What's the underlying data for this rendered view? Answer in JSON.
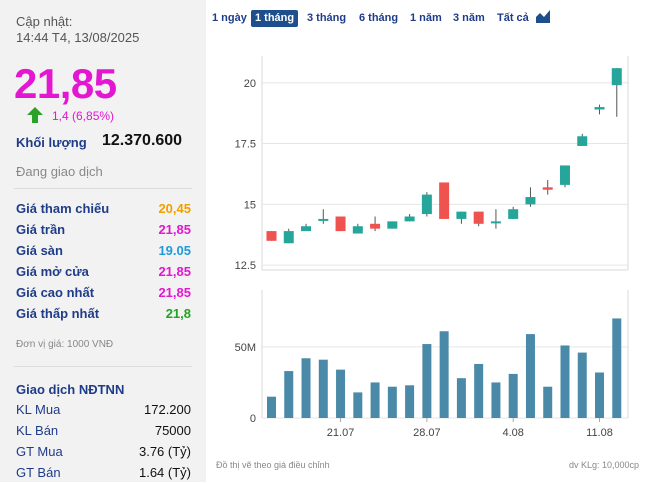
{
  "summary": {
    "update_label": "Cập nhật:",
    "update_time": "14:44 T4, 13/08/2025",
    "price": "21,85",
    "change": "1,4 (6,85%)",
    "volume_label": "Khối lượng",
    "volume_value": "12.370.600",
    "status": "Đang giao dịch",
    "unit_note": "Đơn vị giá: 1000 VNĐ"
  },
  "price_rows": [
    {
      "label": "Giá tham chiếu",
      "value": "20,45",
      "color": "#f0a000"
    },
    {
      "label": "Giá trần",
      "value": "21,85",
      "color": "#e316d2"
    },
    {
      "label": "Giá sàn",
      "value": "19.05",
      "color": "#1f9bd8"
    },
    {
      "label": "Giá mở cửa",
      "value": "21,85",
      "color": "#e316d2"
    },
    {
      "label": "Giá cao nhất",
      "value": "21,85",
      "color": "#e316d2"
    },
    {
      "label": "Giá thấp nhất",
      "value": "21,8",
      "color": "#22a422"
    }
  ],
  "foreign": {
    "title": "Giao dịch NĐTNN",
    "rows": [
      {
        "label": "KL Mua",
        "value": "172.200"
      },
      {
        "label": "KL Bán",
        "value": "75000"
      },
      {
        "label": "GT Mua",
        "value": "3.76 (Tỷ)"
      },
      {
        "label": "GT Bán",
        "value": "1.64 (Tỷ)"
      }
    ]
  },
  "ranges": {
    "items": [
      "1 ngày",
      "1 tháng",
      "3 tháng",
      "6 tháng",
      "1 năm",
      "3 năm",
      "Tất cả"
    ],
    "active": "1 tháng",
    "chart_type_icon": "area-chart-icon"
  },
  "footer": {
    "note": "Đồ thị vẽ theo giá điều chỉnh",
    "volume_unit": "dv KLg: 10,000cp"
  },
  "colors": {
    "up": "#26a69a",
    "down": "#ef5350",
    "volume": "#4a8aa8",
    "accent": "#e316d2"
  },
  "chart_data": {
    "type": "candlestick",
    "x_ticks": [
      "21.07",
      "28.07",
      "4.08",
      "11.08"
    ],
    "y_ticks": [
      "12.5",
      "15",
      "17.5",
      "20"
    ],
    "ylim": [
      12.3,
      21.1
    ],
    "volume_ticks": [
      "0",
      "50M"
    ],
    "volume_lim": [
      0,
      90
    ],
    "candles": [
      {
        "o": 13.9,
        "h": 13.9,
        "l": 13.5,
        "c": 13.5,
        "v": 15
      },
      {
        "o": 13.4,
        "h": 14.0,
        "l": 13.4,
        "c": 13.9,
        "v": 33
      },
      {
        "o": 13.9,
        "h": 14.2,
        "l": 13.9,
        "c": 14.1,
        "v": 42
      },
      {
        "o": 14.4,
        "h": 14.8,
        "l": 14.2,
        "c": 14.4,
        "v": 41
      },
      {
        "o": 14.5,
        "h": 14.5,
        "l": 13.9,
        "c": 13.9,
        "v": 34
      },
      {
        "o": 13.8,
        "h": 14.2,
        "l": 13.8,
        "c": 14.1,
        "v": 18
      },
      {
        "o": 14.2,
        "h": 14.5,
        "l": 13.9,
        "c": 14.0,
        "v": 25
      },
      {
        "o": 14.0,
        "h": 14.3,
        "l": 14.0,
        "c": 14.3,
        "v": 22
      },
      {
        "o": 14.3,
        "h": 14.6,
        "l": 14.3,
        "c": 14.5,
        "v": 23
      },
      {
        "o": 14.6,
        "h": 15.5,
        "l": 14.5,
        "c": 15.4,
        "v": 52
      },
      {
        "o": 15.9,
        "h": 15.9,
        "l": 14.4,
        "c": 14.4,
        "v": 61
      },
      {
        "o": 14.4,
        "h": 14.7,
        "l": 14.2,
        "c": 14.7,
        "v": 28
      },
      {
        "o": 14.7,
        "h": 14.7,
        "l": 14.1,
        "c": 14.2,
        "v": 38
      },
      {
        "o": 14.3,
        "h": 14.8,
        "l": 14.0,
        "c": 14.3,
        "v": 25
      },
      {
        "o": 14.4,
        "h": 14.9,
        "l": 14.4,
        "c": 14.8,
        "v": 31
      },
      {
        "o": 15.0,
        "h": 15.7,
        "l": 14.9,
        "c": 15.3,
        "v": 59
      },
      {
        "o": 15.7,
        "h": 16.0,
        "l": 15.4,
        "c": 15.6,
        "v": 22
      },
      {
        "o": 15.8,
        "h": 16.6,
        "l": 15.7,
        "c": 16.6,
        "v": 51
      },
      {
        "o": 17.4,
        "h": 17.9,
        "l": 17.4,
        "c": 17.8,
        "v": 46
      },
      {
        "o": 18.9,
        "h": 19.1,
        "l": 18.7,
        "c": 19.0,
        "v": 32
      },
      {
        "o": 19.9,
        "h": 20.6,
        "l": 18.6,
        "c": 20.6,
        "v": 70
      }
    ]
  }
}
